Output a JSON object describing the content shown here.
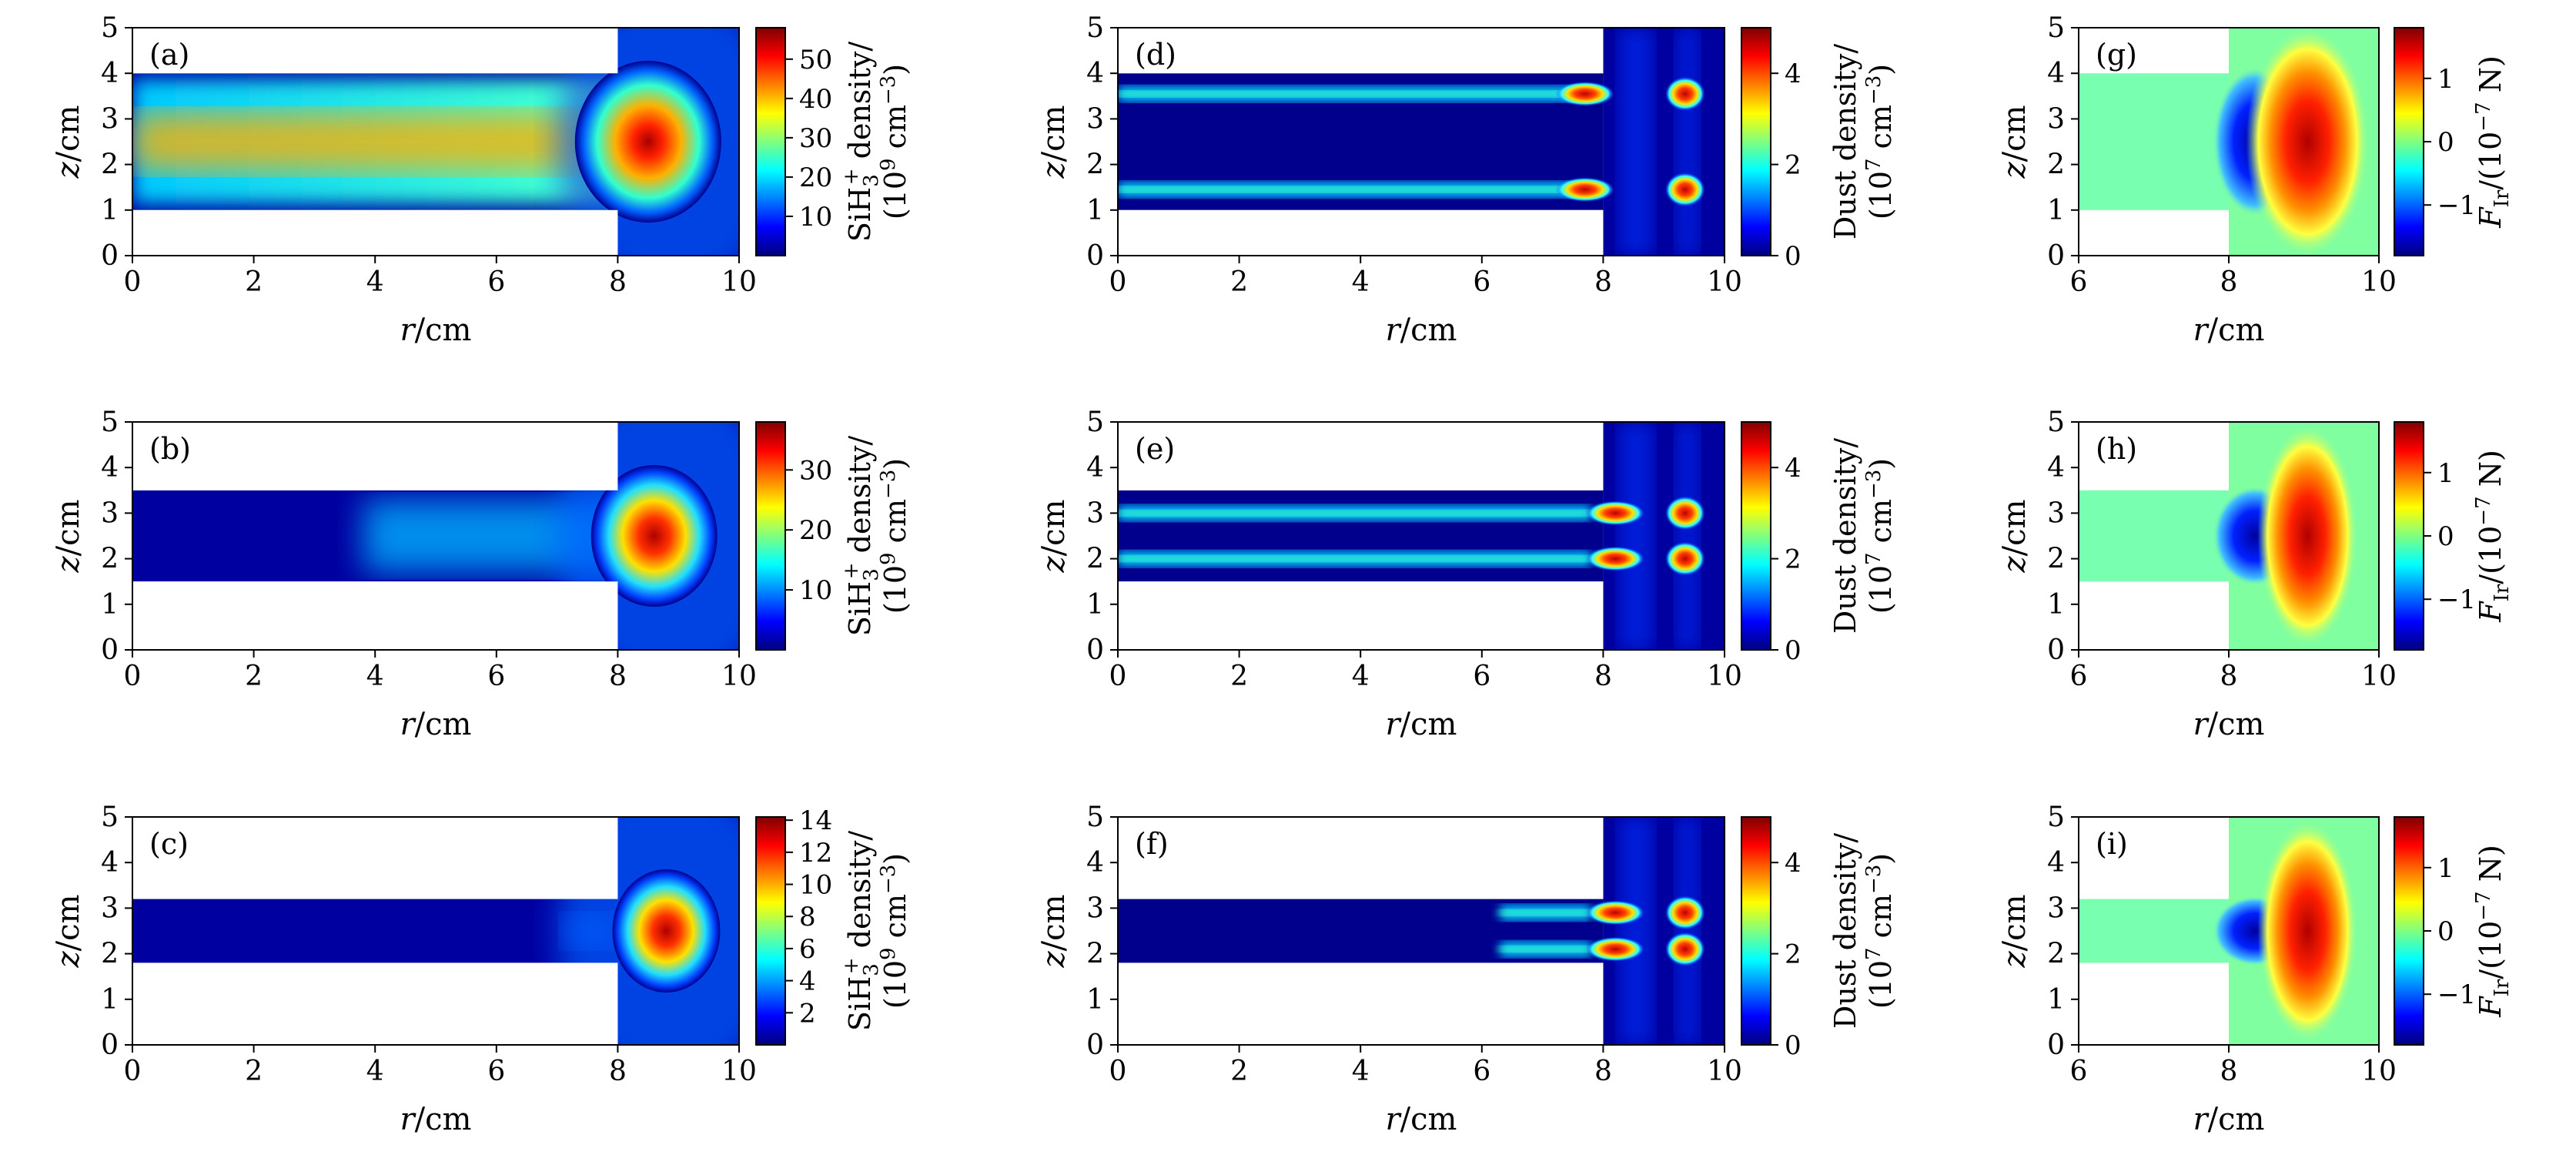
{
  "figure": {
    "label_z": "z",
    "label_r": "r",
    "unit": "/cm"
  },
  "chart_data": [
    {
      "panel": "(a)",
      "type": "heatmap",
      "quantity": "SiH3+ density",
      "cbar_label": [
        "SiH",
        "3",
        "+",
        " density/",
        "(10",
        "9",
        " cm",
        "−3",
        ")"
      ],
      "xlim": [
        0,
        10
      ],
      "ylim": [
        0,
        5
      ],
      "xticks": [
        "0",
        "2",
        "4",
        "6",
        "8",
        "10"
      ],
      "yticks": [
        "0",
        "1",
        "2",
        "3",
        "4",
        "5"
      ],
      "cbar_range": [
        0,
        58
      ],
      "cbar_ticks": [
        "10",
        "20",
        "30",
        "40",
        "50"
      ],
      "cbar_tick_values": [
        10,
        20,
        30,
        40,
        50
      ],
      "channel_z": [
        1.0,
        4.0
      ],
      "electrode_r": 8,
      "peak": {
        "r": 8.5,
        "z": 2.5,
        "value": 57
      }
    },
    {
      "panel": "(b)",
      "type": "heatmap",
      "quantity": "SiH3+ density",
      "cbar_label": [
        "SiH",
        "3",
        "+",
        " density/",
        "(10",
        "9",
        " cm",
        "−3",
        ")"
      ],
      "xlim": [
        0,
        10
      ],
      "ylim": [
        0,
        5
      ],
      "xticks": [
        "0",
        "2",
        "4",
        "6",
        "8",
        "10"
      ],
      "yticks": [
        "0",
        "1",
        "2",
        "3",
        "4",
        "5"
      ],
      "cbar_range": [
        0,
        38
      ],
      "cbar_ticks": [
        "10",
        "20",
        "30"
      ],
      "cbar_tick_values": [
        10,
        20,
        30
      ],
      "channel_z": [
        1.5,
        3.5
      ],
      "electrode_r": 8,
      "peak": {
        "r": 8.6,
        "z": 2.5,
        "value": 37
      }
    },
    {
      "panel": "(c)",
      "type": "heatmap",
      "quantity": "SiH3+ density",
      "cbar_label": [
        "SiH",
        "3",
        "+",
        " density/",
        "(10",
        "9",
        " cm",
        "−3",
        ")"
      ],
      "xlim": [
        0,
        10
      ],
      "ylim": [
        0,
        5
      ],
      "xticks": [
        "0",
        "2",
        "4",
        "6",
        "8",
        "10"
      ],
      "yticks": [
        "0",
        "1",
        "2",
        "3",
        "4",
        "5"
      ],
      "cbar_range": [
        0,
        14.2
      ],
      "cbar_ticks": [
        "2",
        "4",
        "6",
        "8",
        "10",
        "12",
        "14"
      ],
      "cbar_tick_values": [
        2,
        4,
        6,
        8,
        10,
        12,
        14
      ],
      "channel_z": [
        1.8,
        3.2
      ],
      "electrode_r": 8,
      "peak": {
        "r": 8.8,
        "z": 2.5,
        "value": 14
      }
    },
    {
      "panel": "(d)",
      "type": "heatmap",
      "quantity": "Dust density",
      "cbar_label": [
        "Dust density/",
        "(10",
        "7",
        " cm",
        "−3",
        ")"
      ],
      "xlim": [
        0,
        10
      ],
      "ylim": [
        0,
        5
      ],
      "xticks": [
        "0",
        "2",
        "4",
        "6",
        "8",
        "10"
      ],
      "yticks": [
        "0",
        "1",
        "2",
        "3",
        "4",
        "5"
      ],
      "cbar_range": [
        0,
        5
      ],
      "cbar_ticks": [
        "0",
        "2",
        "4"
      ],
      "cbar_tick_values": [
        0,
        2,
        4
      ],
      "channel_z": [
        1.0,
        4.0
      ],
      "electrode_r": 8,
      "dust_layers_z": [
        3.55,
        1.45
      ]
    },
    {
      "panel": "(e)",
      "type": "heatmap",
      "quantity": "Dust density",
      "cbar_label": [
        "Dust density/",
        "(10",
        "7",
        " cm",
        "−3",
        ")"
      ],
      "xlim": [
        0,
        10
      ],
      "ylim": [
        0,
        5
      ],
      "xticks": [
        "0",
        "2",
        "4",
        "6",
        "8",
        "10"
      ],
      "yticks": [
        "0",
        "1",
        "2",
        "3",
        "4",
        "5"
      ],
      "cbar_range": [
        0,
        5
      ],
      "cbar_ticks": [
        "0",
        "2",
        "4"
      ],
      "cbar_tick_values": [
        0,
        2,
        4
      ],
      "channel_z": [
        1.5,
        3.5
      ],
      "electrode_r": 8,
      "dust_layers_z": [
        3.0,
        2.0
      ]
    },
    {
      "panel": "(f)",
      "type": "heatmap",
      "quantity": "Dust density",
      "cbar_label": [
        "Dust density/",
        "(10",
        "7",
        " cm",
        "−3",
        ")"
      ],
      "xlim": [
        0,
        10
      ],
      "ylim": [
        0,
        5
      ],
      "xticks": [
        "0",
        "2",
        "4",
        "6",
        "8",
        "10"
      ],
      "yticks": [
        "0",
        "1",
        "2",
        "3",
        "4",
        "5"
      ],
      "cbar_range": [
        0,
        5
      ],
      "cbar_ticks": [
        "0",
        "2",
        "4"
      ],
      "cbar_tick_values": [
        0,
        2,
        4
      ],
      "channel_z": [
        1.8,
        3.2
      ],
      "electrode_r": 8,
      "dust_layers_z": [
        2.9,
        2.1
      ]
    },
    {
      "panel": "(g)",
      "type": "heatmap",
      "quantity": "F_Ir",
      "cbar_label": [
        "F",
        "Ir",
        "/(10",
        "−7",
        " N)"
      ],
      "xlim": [
        6,
        10
      ],
      "ylim": [
        0,
        5
      ],
      "xticks": [
        "6",
        "8",
        "10"
      ],
      "yticks": [
        "0",
        "1",
        "2",
        "3",
        "4",
        "5"
      ],
      "cbar_range": [
        -1.8,
        1.8
      ],
      "cbar_ticks": [
        "−1",
        "0",
        "1"
      ],
      "cbar_tick_values": [
        -1,
        0,
        1
      ],
      "channel_z": [
        1.0,
        4.0
      ],
      "electrode_r": 8
    },
    {
      "panel": "(h)",
      "type": "heatmap",
      "quantity": "F_Ir",
      "cbar_label": [
        "F",
        "Ir",
        "/(10",
        "−7",
        " N)"
      ],
      "xlim": [
        6,
        10
      ],
      "ylim": [
        0,
        5
      ],
      "xticks": [
        "6",
        "8",
        "10"
      ],
      "yticks": [
        "0",
        "1",
        "2",
        "3",
        "4",
        "5"
      ],
      "cbar_range": [
        -1.8,
        1.8
      ],
      "cbar_ticks": [
        "−1",
        "0",
        "1"
      ],
      "cbar_tick_values": [
        -1,
        0,
        1
      ],
      "channel_z": [
        1.5,
        3.5
      ],
      "electrode_r": 8
    },
    {
      "panel": "(i)",
      "type": "heatmap",
      "quantity": "F_Ir",
      "cbar_label": [
        "F",
        "Ir",
        "/(10",
        "−7",
        " N)"
      ],
      "xlim": [
        6,
        10
      ],
      "ylim": [
        0,
        5
      ],
      "xticks": [
        "6",
        "8",
        "10"
      ],
      "yticks": [
        "0",
        "1",
        "2",
        "3",
        "4",
        "5"
      ],
      "cbar_range": [
        -1.8,
        1.8
      ],
      "cbar_ticks": [
        "−1",
        "0",
        "1"
      ],
      "cbar_tick_values": [
        -1,
        0,
        1
      ],
      "channel_z": [
        1.8,
        3.2
      ],
      "electrode_r": 8
    }
  ]
}
